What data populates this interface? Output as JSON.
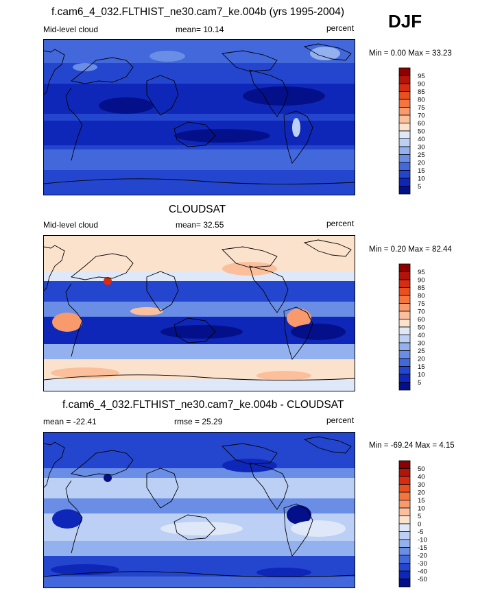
{
  "season": "DJF",
  "panels": [
    {
      "title": "f.cam6_4_032.FLTHIST_ne30.cam7_ke.004b (yrs 1995-2004)",
      "left_label": "Mid-level cloud",
      "mid_label": "mean=  10.14",
      "right_label": "percent",
      "minmax": "Min =   0.00 Max =  33.23",
      "colorbar": {
        "labels": [
          "95",
          "90",
          "85",
          "80",
          "75",
          "70",
          "60",
          "50",
          "40",
          "30",
          "25",
          "20",
          "15",
          "10",
          "5"
        ],
        "colors": [
          "#8b0000",
          "#b2140a",
          "#d62c12",
          "#e8501e",
          "#f4763e",
          "#f99a6c",
          "#fcbf9c",
          "#fbe2cc",
          "#dfe8f8",
          "#bcd0f5",
          "#93b1ee",
          "#6a8ee6",
          "#4368dc",
          "#2446cf",
          "#0f27b8",
          "#03108a"
        ]
      }
    },
    {
      "title": "CLOUDSAT",
      "left_label": "Mid-level cloud",
      "mid_label": "mean=  32.55",
      "right_label": "percent",
      "minmax": "Min =   0.20 Max =  82.44",
      "colorbar": {
        "labels": [
          "95",
          "90",
          "85",
          "80",
          "75",
          "70",
          "60",
          "50",
          "40",
          "30",
          "25",
          "20",
          "15",
          "10",
          "5"
        ],
        "colors": [
          "#8b0000",
          "#b2140a",
          "#d62c12",
          "#e8501e",
          "#f4763e",
          "#f99a6c",
          "#fcbf9c",
          "#fbe2cc",
          "#dfe8f8",
          "#bcd0f5",
          "#93b1ee",
          "#6a8ee6",
          "#4368dc",
          "#2446cf",
          "#0f27b8",
          "#03108a"
        ]
      }
    },
    {
      "title": "f.cam6_4_032.FLTHIST_ne30.cam7_ke.004b - CLOUDSAT",
      "left_label": "mean = -22.41",
      "mid_label": "rmse =  25.29",
      "right_label": "percent",
      "minmax": "Min = -69.24 Max =   4.15",
      "colorbar": {
        "labels": [
          "50",
          "40",
          "30",
          "20",
          "15",
          "10",
          "5",
          "0",
          "-5",
          "-10",
          "-15",
          "-20",
          "-30",
          "-40",
          "-50"
        ],
        "colors": [
          "#8b0000",
          "#b2140a",
          "#d62c12",
          "#e8501e",
          "#f4763e",
          "#f99a6c",
          "#fcbf9c",
          "#fbe2cc",
          "#dfe8f8",
          "#bcd0f5",
          "#93b1ee",
          "#6a8ee6",
          "#4368dc",
          "#2446cf",
          "#0f27b8",
          "#03108a"
        ]
      }
    }
  ]
}
